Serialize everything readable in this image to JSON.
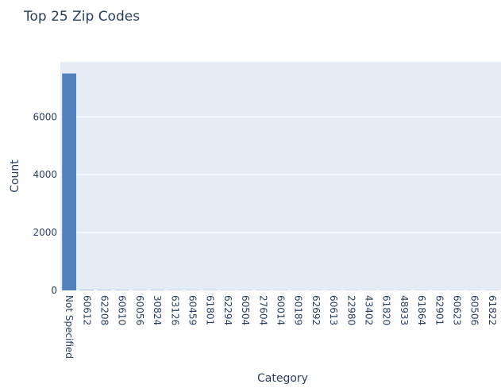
{
  "chart_data": {
    "type": "bar",
    "title": "Top 25 Zip Codes",
    "x_label": "Category",
    "y_label": "Count",
    "categories": [
      "Not Specified",
      "60612",
      "62208",
      "60610",
      "60056",
      "30824",
      "63126",
      "60459",
      "61801",
      "62294",
      "60504",
      "27604",
      "60014",
      "60189",
      "62692",
      "60613",
      "22980",
      "43402",
      "61820",
      "48933",
      "61864",
      "62901",
      "60623",
      "60506",
      "61822"
    ],
    "values": [
      7500,
      12,
      10,
      9,
      8,
      8,
      7,
      7,
      7,
      6,
      6,
      6,
      6,
      5,
      5,
      5,
      5,
      5,
      5,
      5,
      4,
      4,
      4,
      4,
      4
    ],
    "color": "#4f81bd",
    "ylim": [
      0,
      7900
    ],
    "yticks": [
      0,
      2000,
      4000,
      6000
    ],
    "grid": true
  }
}
